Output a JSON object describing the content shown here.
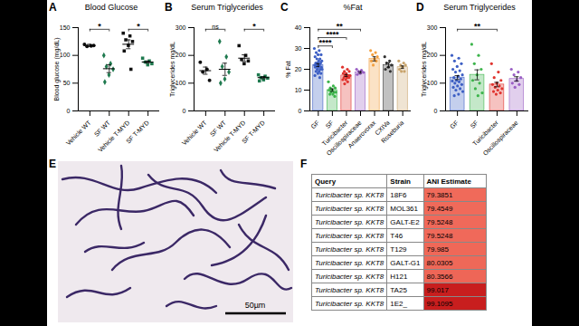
{
  "chart_data": [
    {
      "panel": "A",
      "type": "scatter",
      "title": "Blood Glucose",
      "ylabel": "Blood glucose (mg/dL)",
      "categories": [
        "Vehicle WT",
        "SF WT",
        "Vehicle T-MYD",
        "SF T-MYD"
      ],
      "values": [
        [
          120,
          117,
          116,
          118
        ],
        [
          100,
          85,
          80,
          75,
          65,
          52
        ],
        [
          140,
          135,
          128,
          125,
          118,
          108,
          75
        ],
        [
          95,
          90,
          88,
          85,
          83
        ]
      ],
      "means": [
        118,
        76,
        120,
        88
      ],
      "errors": [
        2,
        7,
        8,
        2
      ],
      "colors": [
        "#111111",
        "#1f7a4f",
        "#111111",
        "#1f7a4f"
      ],
      "markers": [
        "circle",
        "diamond",
        "square",
        "square"
      ],
      "ylim": [
        0,
        150
      ],
      "yticks": [
        0,
        50,
        100,
        150
      ],
      "annotations": [
        {
          "text": "*",
          "from": "Vehicle WT",
          "to": "SF WT"
        },
        {
          "text": "*",
          "from": "Vehicle T-MYD",
          "to": "SF T-MYD"
        }
      ]
    },
    {
      "panel": "B",
      "type": "scatter",
      "title": "Serum Triglycerides",
      "ylabel": "Triglycerides mg/dL",
      "categories": [
        "Vehicle WT",
        "SF WT",
        "Vehicle T-MYD",
        "SF T-MYD"
      ],
      "values": [
        [
          175,
          150,
          140,
          110
        ],
        [
          250,
          195,
          160,
          140,
          115,
          100
        ],
        [
          235,
          200,
          185,
          180,
          170
        ],
        [
          130,
          125,
          120,
          118,
          112,
          108
        ]
      ],
      "means": [
        145,
        150,
        190,
        120
      ],
      "errors": [
        13,
        22,
        12,
        4
      ],
      "colors": [
        "#111111",
        "#1f7a4f",
        "#111111",
        "#1f7a4f"
      ],
      "markers": [
        "circle",
        "diamond",
        "square",
        "square"
      ],
      "ylim": [
        0,
        300
      ],
      "yticks": [
        0,
        100,
        200,
        300
      ],
      "annotations": [
        {
          "text": "ns",
          "from": "Vehicle WT",
          "to": "SF WT"
        },
        {
          "text": "*",
          "from": "Vehicle T-MYD",
          "to": "SF T-MYD"
        }
      ]
    },
    {
      "panel": "C",
      "type": "bar",
      "title": "%Fat",
      "ylabel": "% Fat",
      "categories": [
        "GF",
        "SF",
        "Turicibacter",
        "Oscillospiraceae",
        "Anaerovorax",
        "CXIVa",
        "Roseburia"
      ],
      "values": [
        [
          30,
          29,
          28,
          27,
          27,
          26,
          25,
          25,
          24,
          24,
          23,
          23,
          23,
          22,
          22,
          22,
          21,
          21,
          21,
          20,
          20,
          20,
          19,
          19,
          18,
          18,
          17,
          16
        ],
        [
          14,
          12,
          11,
          11,
          10,
          10,
          9,
          9,
          9,
          8,
          8,
          7
        ],
        [
          21,
          20,
          19,
          19,
          18,
          18,
          17,
          17,
          17,
          16,
          16,
          16,
          15,
          15,
          14,
          13
        ],
        [
          20,
          19.5,
          19,
          18.5,
          18,
          17.5
        ],
        [
          29,
          28,
          27,
          26,
          25,
          24,
          24,
          22
        ],
        [
          26,
          24,
          23,
          22,
          21,
          20,
          19
        ],
        [
          24,
          23,
          22,
          22,
          21,
          20,
          19,
          19
        ]
      ],
      "means": [
        22,
        10,
        17,
        18.5,
        25,
        22,
        21
      ],
      "errors": [
        0.7,
        0.6,
        0.5,
        0.4,
        1,
        1,
        0.6
      ],
      "colors": [
        "#3d5fc4",
        "#3cb44b",
        "#e0342f",
        "#9a5fc4",
        "#f3a040",
        "#333333",
        "#c9a46c"
      ],
      "markers": [
        "circle",
        "circle",
        "circle",
        "circle",
        "circle",
        "circle",
        "circle"
      ],
      "ylim": [
        0,
        40
      ],
      "yticks": [
        0,
        10,
        20,
        30,
        40
      ],
      "annotations": [
        {
          "text": "****",
          "from": "GF",
          "to": "SF"
        },
        {
          "text": "****",
          "from": "GF",
          "to": "Turicibacter"
        },
        {
          "text": "**",
          "from": "GF",
          "to": "Oscillospiraceae"
        }
      ]
    },
    {
      "panel": "D",
      "type": "bar",
      "title": "Serum Triglycerides",
      "ylabel": "Triglycerides mg/dL",
      "categories": [
        "GF",
        "SF",
        "Turicibacter",
        "Oscillospiraceae"
      ],
      "values": [
        [
          200,
          190,
          180,
          170,
          160,
          150,
          145,
          140,
          130,
          125,
          120,
          115,
          110,
          108,
          105,
          100,
          95,
          90,
          85,
          80,
          75,
          70,
          60,
          55
        ],
        [
          240,
          200,
          170,
          150,
          130,
          110,
          100,
          80,
          65,
          55
        ],
        [
          170,
          140,
          120,
          110,
          100,
          95,
          90,
          85,
          80,
          75,
          70,
          65,
          60
        ],
        [
          150,
          140,
          130,
          120,
          110,
          100,
          95,
          85
        ]
      ],
      "means": [
        120,
        130,
        95,
        115
      ],
      "errors": [
        7,
        18,
        8,
        8
      ],
      "colors": [
        "#3d5fc4",
        "#3cb44b",
        "#e0342f",
        "#9a5fc4"
      ],
      "markers": [
        "circle",
        "circle",
        "circle",
        "circle"
      ],
      "ylim": [
        0,
        300
      ],
      "yticks": [
        0,
        100,
        200,
        300
      ],
      "annotations": [
        {
          "text": "**",
          "from": "GF",
          "to": "Turicibacter"
        }
      ]
    }
  ],
  "image": {
    "panel": "E",
    "scale_bar": "50µm"
  },
  "table": {
    "panel": "F",
    "header": [
      "Query",
      "Strain",
      "ANI Estimate"
    ],
    "rows": [
      [
        "Turicibacter sp. KKT8",
        "18F6",
        79.3851
      ],
      [
        "Turicibacter sp. KKT8",
        "MOL361",
        79.4549
      ],
      [
        "Turicibacter sp. KKT8",
        "GALT-E2",
        79.5248
      ],
      [
        "Turicibacter sp. KKT8",
        "T46",
        79.5248
      ],
      [
        "Turicibacter sp. KKT8",
        "T129",
        79.985
      ],
      [
        "Turicibacter sp. KKT8",
        "GALT-G1",
        80.0305
      ],
      [
        "Turicibacter sp. KKT8",
        "H121",
        80.3566
      ],
      [
        "Turicibacter sp. KKT8",
        "TA25",
        99.017
      ],
      [
        "Turicibacter sp. KKT8",
        "1E2_",
        99.1095
      ]
    ]
  }
}
